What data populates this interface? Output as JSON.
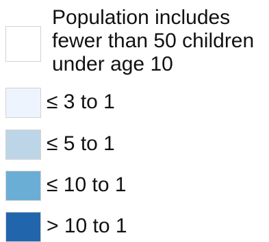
{
  "legend": {
    "items": [
      {
        "label": "Population includes fewer than 50 children under age 10",
        "color": "#ffffff"
      },
      {
        "label": "≤ 3 to 1",
        "color": "#eef4fd"
      },
      {
        "label": "≤ 5 to 1",
        "color": "#bdd6e7"
      },
      {
        "label": "≤ 10 to 1",
        "color": "#6aaed6"
      },
      {
        "label": "> 10 to 1",
        "color": "#2166ac"
      }
    ]
  }
}
